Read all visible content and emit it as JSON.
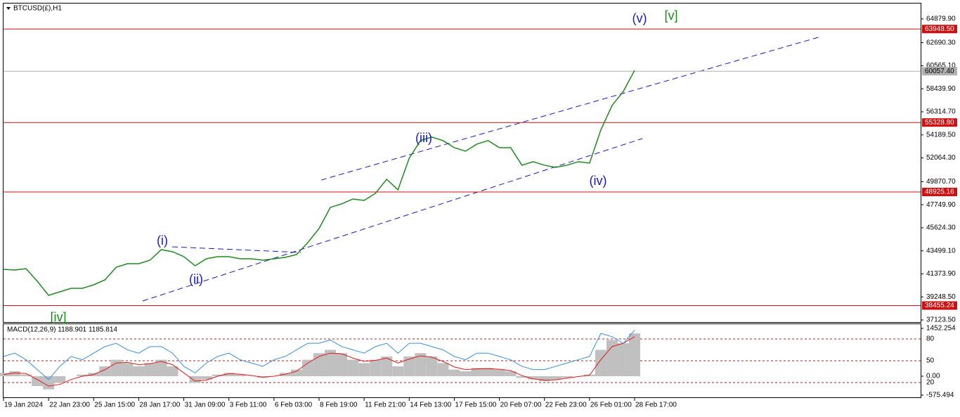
{
  "chart_data": [
    {
      "type": "line",
      "title": "BTCUSD(£),H1",
      "categories": [
        "19 Jan 2024",
        null,
        null,
        null,
        "22 Jan 23:00",
        null,
        null,
        null,
        "25 Jan 15:00",
        null,
        null,
        null,
        "28 Jan 17:00",
        null,
        null,
        null,
        "31 Jan 09:00",
        null,
        null,
        null,
        "3 Feb 11:00",
        null,
        null,
        null,
        "6 Feb 03:00",
        null,
        null,
        null,
        "8 Feb 19:00",
        null,
        null,
        null,
        "11 Feb 21:00",
        null,
        null,
        null,
        "14 Feb 13:00",
        null,
        null,
        null,
        "17 Feb 15:00",
        null,
        null,
        null,
        "20 Feb 07:00",
        null,
        null,
        null,
        "22 Feb 23:00",
        null,
        null,
        null,
        "26 Feb 01:00",
        null,
        null,
        null,
        "28 Feb 17:00"
      ],
      "series": [
        {
          "name": "BTCUSD",
          "color": "#1e8a1e",
          "values": [
            41793,
            41729,
            41858,
            40691,
            39394,
            39718,
            40042,
            40042,
            40367,
            40821,
            41988,
            42312,
            42312,
            42636,
            43609,
            43415,
            42961,
            42118,
            42766,
            42961,
            42961,
            42766,
            42766,
            42636,
            42766,
            42896,
            43155,
            44258,
            45555,
            47500,
            47824,
            48278,
            48149,
            48797,
            50094,
            49121,
            52040,
            53661,
            53985,
            53661,
            53012,
            52688,
            53337,
            53661,
            53012,
            53012,
            51391,
            51715,
            51391,
            51197,
            51391,
            51715,
            51586,
            54634,
            56903,
            58200,
            60146
          ]
        }
      ],
      "ylim": [
        36930,
        66300
      ],
      "yticks": [
        {
          "value": 64879.9,
          "label": "64879.90"
        },
        {
          "value": 62690.3,
          "label": "62690.30"
        },
        {
          "value": 60565.1,
          "label": "60565.10"
        },
        {
          "value": 58439.9,
          "label": "58439.90"
        },
        {
          "value": 56314.7,
          "label": "56314.70"
        },
        {
          "value": 54189.5,
          "label": "54189.50"
        },
        {
          "value": 52064.3,
          "label": "52064.30"
        },
        {
          "value": 49870.7,
          "label": "49870.70"
        },
        {
          "value": 47749.9,
          "label": "47749.90"
        },
        {
          "value": 45624.3,
          "label": "45624.30"
        },
        {
          "value": 43499.1,
          "label": "43499.10"
        },
        {
          "value": 41373.9,
          "label": "41373.90"
        },
        {
          "value": 39248.5,
          "label": "39248.50"
        },
        {
          "value": 37123.5,
          "label": "37123.50"
        }
      ],
      "levels": [
        {
          "value": 63948.5,
          "label": "63948.50",
          "color": "#d01010"
        },
        {
          "value": 60057.4,
          "label": "60057.40",
          "color": "#b0b0b0"
        },
        {
          "value": 55328.8,
          "label": "55328.80",
          "color": "#d01010"
        },
        {
          "value": 48925.16,
          "label": "48925.16",
          "color": "#d01010"
        },
        {
          "value": 38455.24,
          "label": "38455.24",
          "color": "#d01010"
        }
      ],
      "annotations": [
        {
          "text": "(v)",
          "color": "#1818c8"
        },
        {
          "text": "[v]",
          "color": "#1a8a1a"
        },
        {
          "text": "(iii)",
          "color": "#1818c8"
        },
        {
          "text": "(iv)",
          "color": "#1818c8"
        },
        {
          "text": "(i)",
          "color": "#1818c8"
        },
        {
          "text": "(ii)",
          "color": "#1818c8"
        },
        {
          "text": "[iv]",
          "color": "#1a8a1a"
        }
      ]
    },
    {
      "type": "macd",
      "title": "MACD(12,26,9) 1188.901 1185.814",
      "series": [
        {
          "name": "MACD",
          "color": "#c0c0c0",
          "values": [
            100,
            150,
            50,
            -300,
            -400,
            -200,
            0,
            50,
            100,
            300,
            500,
            400,
            300,
            400,
            500,
            300,
            0,
            -200,
            -100,
            50,
            100,
            50,
            0,
            -50,
            0,
            100,
            200,
            500,
            700,
            800,
            700,
            500,
            400,
            500,
            600,
            300,
            600,
            700,
            600,
            400,
            200,
            150,
            250,
            250,
            200,
            150,
            -50,
            -100,
            -150,
            -100,
            -50,
            0,
            50,
            800,
            1100,
            1000,
            1300
          ]
        },
        {
          "name": "Signal",
          "color": "#e01818",
          "values": [
            50,
            100,
            80,
            -100,
            -300,
            -250,
            -100,
            0,
            50,
            200,
            400,
            420,
            350,
            380,
            450,
            350,
            100,
            -150,
            -120,
            0,
            80,
            60,
            20,
            -30,
            0,
            60,
            150,
            400,
            600,
            700,
            680,
            550,
            450,
            480,
            550,
            400,
            520,
            620,
            580,
            450,
            280,
            200,
            220,
            230,
            210,
            170,
            20,
            -80,
            -120,
            -110,
            -60,
            -10,
            30,
            500,
            900,
            1000,
            1200
          ]
        },
        {
          "name": "Line",
          "color": "#3a8ee0",
          "values": [
            600,
            700,
            500,
            200,
            -100,
            300,
            600,
            500,
            700,
            900,
            1000,
            800,
            700,
            900,
            900,
            700,
            300,
            100,
            400,
            600,
            700,
            500,
            400,
            300,
            500,
            600,
            800,
            1000,
            1000,
            1100,
            900,
            800,
            700,
            900,
            1000,
            700,
            1000,
            1000,
            900,
            800,
            600,
            500,
            700,
            700,
            600,
            500,
            300,
            200,
            200,
            300,
            400,
            500,
            600,
            1300,
            1200,
            1000,
            1400
          ]
        }
      ],
      "ylim": [
        -641,
        1580
      ],
      "yticks": [
        1452.254,
        {
          "value": 0,
          "label": "0.00"
        },
        -575.494
      ],
      "level_labels": [
        "80",
        "50",
        "20"
      ]
    }
  ]
}
